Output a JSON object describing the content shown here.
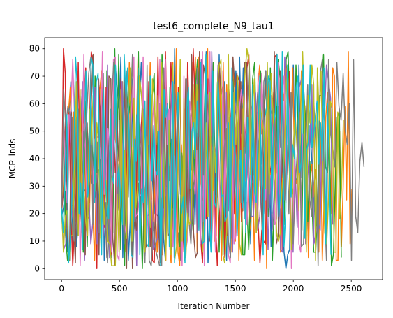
{
  "chart_data": {
    "type": "line",
    "title": "test6_complete_N9_tau1",
    "xlabel": "Iteration Number",
    "ylabel": "MCP_inds",
    "xlim": [
      -146,
      2770
    ],
    "ylim": [
      -4,
      84
    ],
    "xticks": [
      0,
      500,
      1000,
      1500,
      2000,
      2500
    ],
    "yticks": [
      0,
      10,
      20,
      30,
      40,
      50,
      60,
      70,
      80
    ],
    "grid": false,
    "legend": "none",
    "series": [
      {
        "color": "#1f77b4",
        "step": 16,
        "x_end": 2210,
        "y_min": 0,
        "y_max": 80,
        "seed": 11
      },
      {
        "color": "#ff7f0e",
        "step": 15,
        "x_end": 2510,
        "y_min": 0,
        "y_max": 80,
        "seed": 23
      },
      {
        "color": "#2ca02c",
        "step": 17,
        "x_end": 2420,
        "y_min": 0,
        "y_max": 80,
        "seed": 37
      },
      {
        "color": "#d62728",
        "step": 16,
        "x_end": 1980,
        "y_min": 0,
        "y_max": 80,
        "seed": 41
      },
      {
        "color": "#9467bd",
        "step": 18,
        "x_end": 2350,
        "y_min": 0,
        "y_max": 80,
        "seed": 53
      },
      {
        "color": "#8c564b",
        "step": 17,
        "x_end": 1950,
        "y_min": 0,
        "y_max": 80,
        "seed": 67
      },
      {
        "color": "#e377c2",
        "step": 16,
        "x_end": 2080,
        "y_min": 0,
        "y_max": 80,
        "seed": 71
      },
      {
        "color": "#7f7f7f",
        "step": 18,
        "x_end": 2625,
        "y_min": 0,
        "y_max": 80,
        "seed": 83
      },
      {
        "color": "#bcbd22",
        "step": 16,
        "x_end": 2440,
        "y_min": 0,
        "y_max": 80,
        "seed": 97
      },
      {
        "color": "#17becf",
        "step": 15,
        "x_end": 2330,
        "y_min": 0,
        "y_max": 80,
        "seed": 109
      }
    ]
  }
}
